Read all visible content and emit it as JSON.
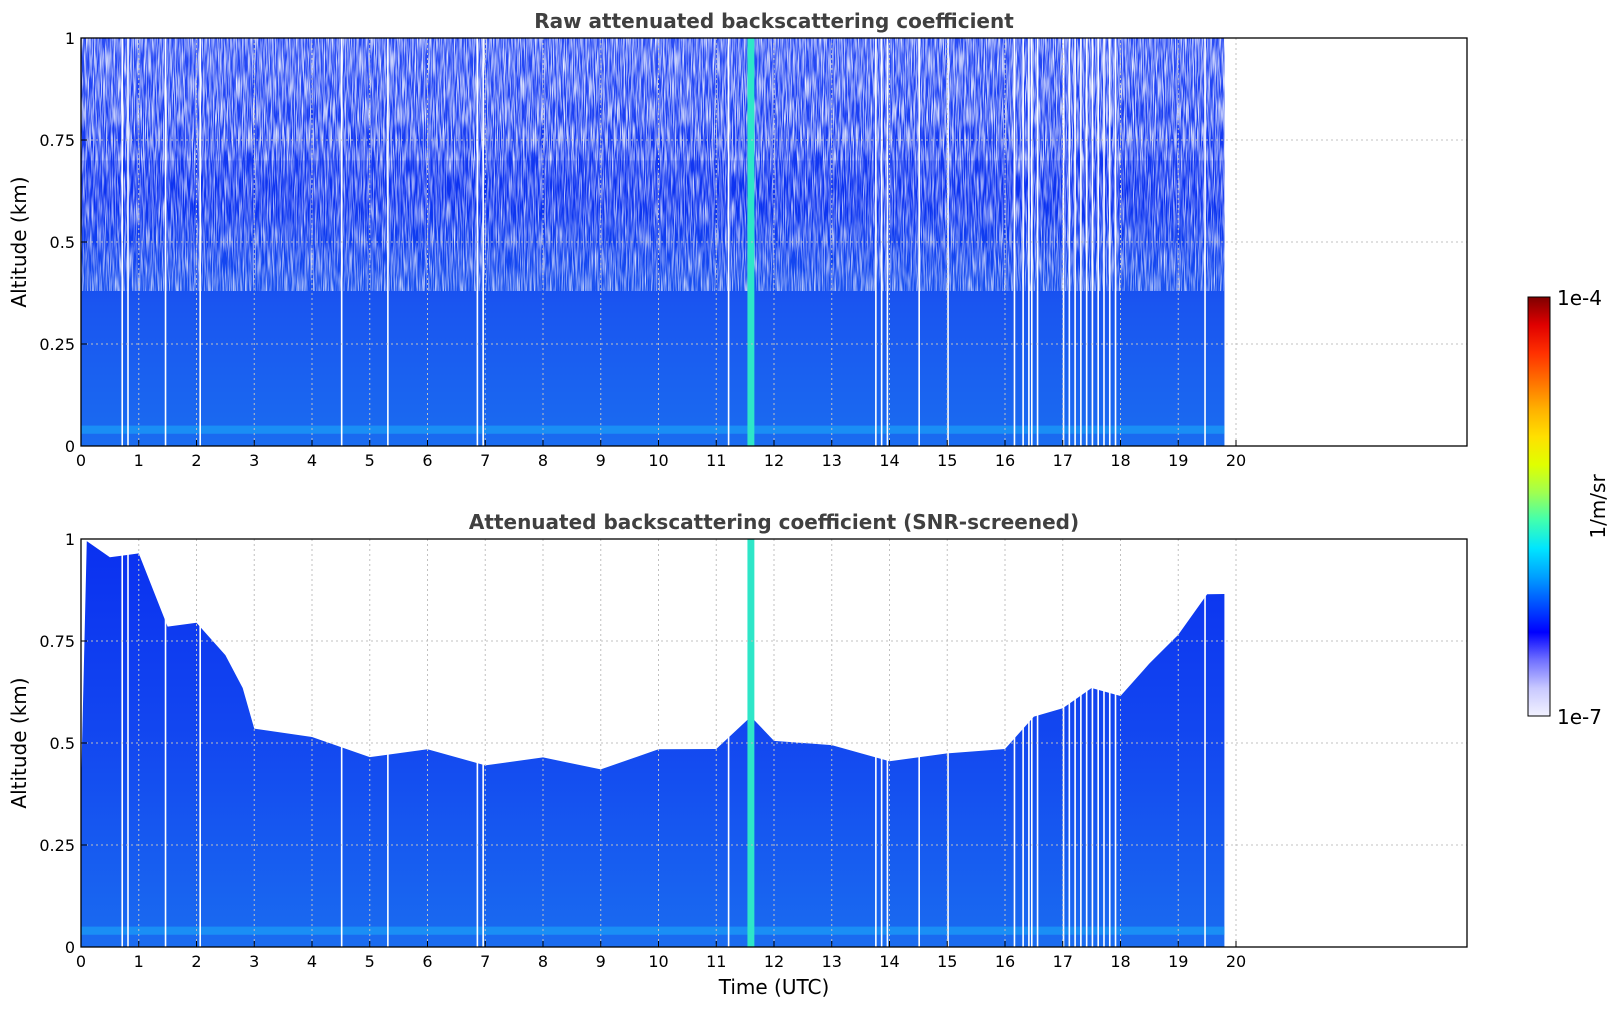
{
  "chart_data": [
    {
      "type": "heatmap",
      "title": "Raw attenuated backscattering coefficient",
      "xlabel": "",
      "ylabel": "Altitude (km)",
      "xlim": [
        0,
        24
      ],
      "ylim": [
        0,
        1
      ],
      "x_ticks": [
        "0",
        "1",
        "2",
        "3",
        "4",
        "5",
        "6",
        "7",
        "8",
        "9",
        "10",
        "11",
        "12",
        "13",
        "14",
        "15",
        "16",
        "17",
        "18",
        "19",
        "20"
      ],
      "y_ticks": [
        "0",
        "0.25",
        "0.5",
        "0.75",
        "1"
      ],
      "grid": true,
      "data_extent_x": [
        0,
        19.8
      ],
      "gap_times": [
        0.7,
        0.8,
        1.45,
        2.05,
        4.5,
        5.3,
        6.85,
        6.95,
        11.2,
        13.75,
        13.85,
        13.95,
        14.5,
        15.0,
        16.15,
        16.3,
        16.4,
        16.45,
        16.55,
        17.0,
        17.1,
        17.2,
        17.3,
        17.4,
        17.5,
        17.6,
        17.7,
        17.8,
        17.9,
        19.45
      ],
      "bright_layer": {
        "time": 11.6,
        "width": 0.12
      },
      "surface_layer": {
        "altitude_min": 0.03,
        "altitude_max": 0.05
      }
    },
    {
      "type": "heatmap",
      "title": "Attenuated backscattering coefficient (SNR-screened)",
      "xlabel": "Time (UTC)",
      "ylabel": "Altitude (km)",
      "xlim": [
        0,
        24
      ],
      "ylim": [
        0,
        1
      ],
      "x_ticks": [
        "0",
        "1",
        "2",
        "3",
        "4",
        "5",
        "6",
        "7",
        "8",
        "9",
        "10",
        "11",
        "12",
        "13",
        "14",
        "15",
        "16",
        "17",
        "18",
        "19",
        "20"
      ],
      "y_ticks": [
        "0",
        "0.25",
        "0.5",
        "0.75",
        "1"
      ],
      "grid": true,
      "data_extent_x": [
        0,
        19.8
      ],
      "screening_top": {
        "times": [
          0,
          0.1,
          0.5,
          1.0,
          1.5,
          2.0,
          2.5,
          2.8,
          3.0,
          4.0,
          5.0,
          6.0,
          7.0,
          8.0,
          9.0,
          10.0,
          11.0,
          11.6,
          12.0,
          13.0,
          14.0,
          15.0,
          16.0,
          16.5,
          17.0,
          17.5,
          18.0,
          18.5,
          19.0,
          19.5,
          19.8
        ],
        "altitudes": [
          0.4,
          0.98,
          0.97,
          0.95,
          0.8,
          0.78,
          0.73,
          0.62,
          0.55,
          0.5,
          0.48,
          0.47,
          0.46,
          0.45,
          0.45,
          0.47,
          0.5,
          0.55,
          0.52,
          0.48,
          0.47,
          0.46,
          0.5,
          0.55,
          0.6,
          0.62,
          0.63,
          0.68,
          0.78,
          0.85,
          0.88
        ]
      },
      "gap_times": [
        0.7,
        0.8,
        1.45,
        2.05,
        4.5,
        5.3,
        6.85,
        6.95,
        11.2,
        13.75,
        13.85,
        13.95,
        14.5,
        15.0,
        16.15,
        16.3,
        16.4,
        16.45,
        16.55,
        17.0,
        17.1,
        17.2,
        17.3,
        17.4,
        17.5,
        17.6,
        17.7,
        17.8,
        17.9,
        19.45
      ],
      "bright_layer": {
        "time": 11.6,
        "width": 0.12
      },
      "surface_layer": {
        "altitude_min": 0.03,
        "altitude_max": 0.05
      }
    }
  ],
  "colorbar": {
    "label": "1/m/sr",
    "min_label": "1e-7",
    "max_label": "1e-4",
    "scale": "log",
    "colormap": [
      "#f2f2ff",
      "#c8c8ff",
      "#7070ff",
      "#0000ff",
      "#0050ff",
      "#00a0ff",
      "#00e5ff",
      "#40ffb0",
      "#a0ff50",
      "#e0ff00",
      "#ffe000",
      "#ffb000",
      "#ff7000",
      "#ff3000",
      "#e00000",
      "#7f0000"
    ]
  }
}
